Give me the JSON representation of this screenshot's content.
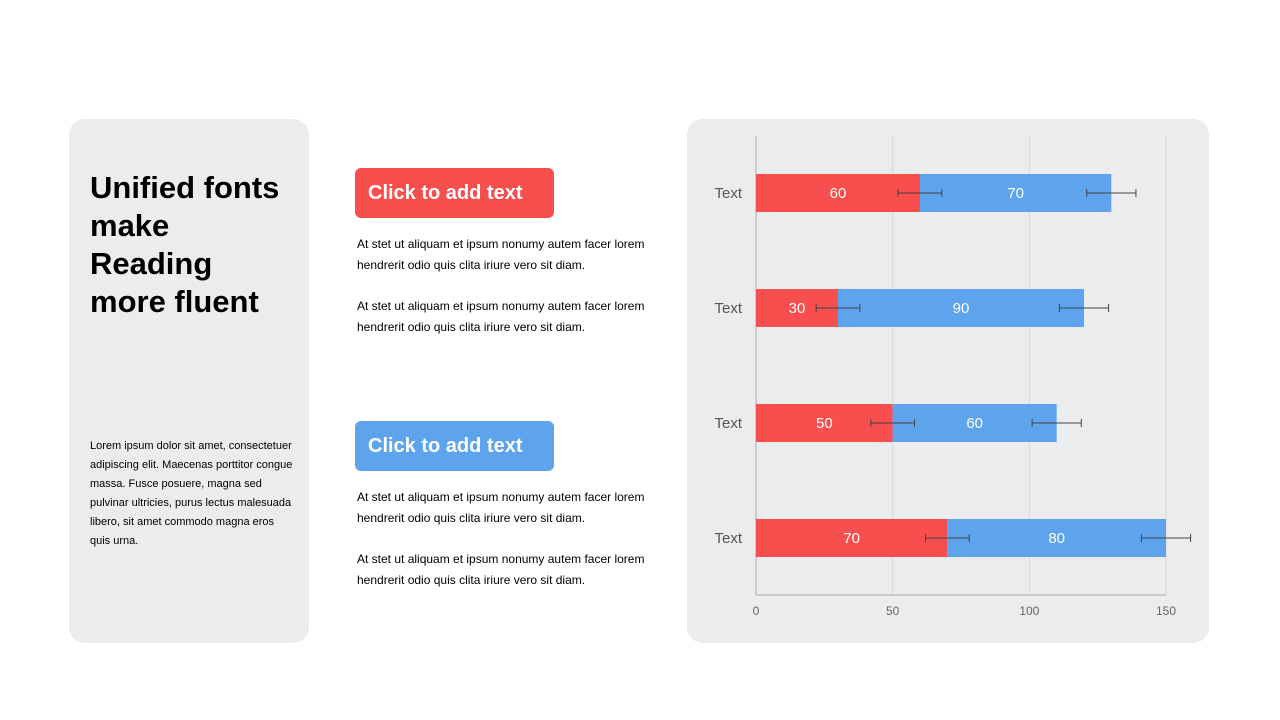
{
  "left_panel": {
    "headline": [
      "Unified fonts",
      "make",
      "Reading",
      "more fluent"
    ],
    "body": "Lorem ipsum dolor sit amet, consectetuer adipiscing elit. Maecenas porttitor congue massa. Fusce posuere, magna sed pulvinar ultricies, purus lectus malesuada libero, sit amet commodo magna eros quis urna."
  },
  "sections": [
    {
      "button_label": "Click to add text",
      "color": "#f74e4e",
      "paragraphs": [
        "At stet ut aliquam et ipsum nonumy autem facer lorem hendrerit odio quis clita iriure vero sit diam.",
        "At stet ut aliquam et ipsum nonumy autem facer lorem hendrerit odio quis clita iriure vero sit diam."
      ]
    },
    {
      "button_label": "Click to add text",
      "color": "#5ea4ec",
      "paragraphs": [
        "At stet ut aliquam et ipsum nonumy autem facer lorem hendrerit odio quis clita iriure vero sit diam.",
        "At stet ut aliquam et ipsum nonumy autem facer lorem hendrerit odio quis clita iriure vero sit diam."
      ]
    }
  ],
  "chart_data": {
    "type": "bar",
    "orientation": "horizontal",
    "stacked": true,
    "categories": [
      "Text",
      "Text",
      "Text",
      "Text"
    ],
    "series": [
      {
        "values": [
          60,
          30,
          50,
          70
        ],
        "color": "#f74e4e",
        "error": [
          8,
          8,
          8,
          8
        ]
      },
      {
        "values": [
          70,
          90,
          60,
          80
        ],
        "color": "#5ea4ec",
        "error": [
          9,
          9,
          9,
          9
        ]
      }
    ],
    "xlim": [
      0,
      150
    ],
    "xticks": [
      0,
      50,
      100,
      150
    ],
    "grid": true,
    "data_labels": true
  }
}
